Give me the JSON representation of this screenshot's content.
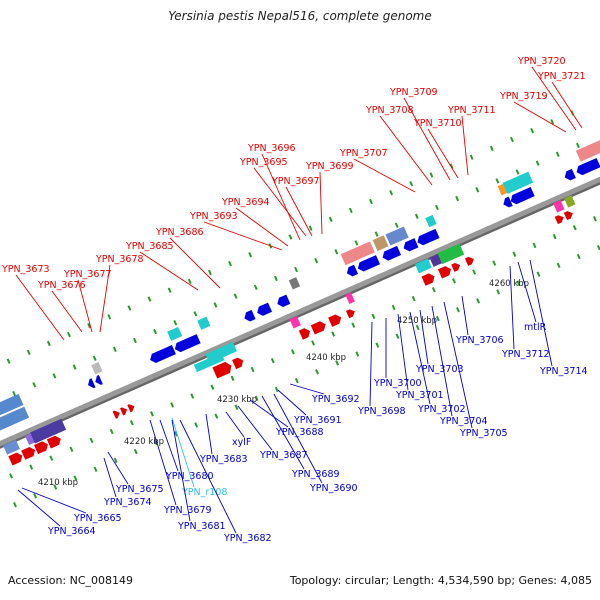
{
  "title": "Yersinia pestis Nepal516, complete genome",
  "footer": {
    "accession": "Accession: NC_008149",
    "topology": "Topology: circular; Length: 4,534,590 bp; Genes: 4,085"
  },
  "colors": {
    "top_label": "#e60000",
    "bottom_label": "#0000cc",
    "rna_label": "#33bbee",
    "backbone": "#999999"
  },
  "ticks": [
    "4210 kbp",
    "4220 kbp",
    "4230 kbp",
    "4240 kbp",
    "4250 kbp",
    "4260 kbp"
  ],
  "top_labels": [
    "YPN_3673",
    "YPN_3676",
    "YPN_3677",
    "YPN_3678",
    "YPN_3685",
    "YPN_3686",
    "YPN_3693",
    "YPN_3694",
    "YPN_3696",
    "YPN_3695",
    "YPN_3697",
    "YPN_3699",
    "YPN_3707",
    "YPN_3708",
    "YPN_3709",
    "YPN_3710",
    "YPN_3711",
    "YPN_3719",
    "YPN_3720",
    "YPN_3721"
  ],
  "bottom_labels": [
    "YPN_3664",
    "YPN_3665",
    "YPN_3674",
    "YPN_3675",
    "YPN_3679",
    "YPN_3680",
    "YPN_r108",
    "YPN_3681",
    "YPN_3682",
    "YPN_3683",
    "xylF",
    "YPN_3687",
    "YPN_3688",
    "YPN_3689",
    "YPN_3690",
    "YPN_3691",
    "YPN_3692",
    "YPN_3698",
    "YPN_3700",
    "YPN_3701",
    "YPN_3702",
    "YPN_3703",
    "YPN_3704",
    "YPN_3705",
    "YPN_3706",
    "YPN_3712",
    "mtlR",
    "YPN_3714"
  ]
}
